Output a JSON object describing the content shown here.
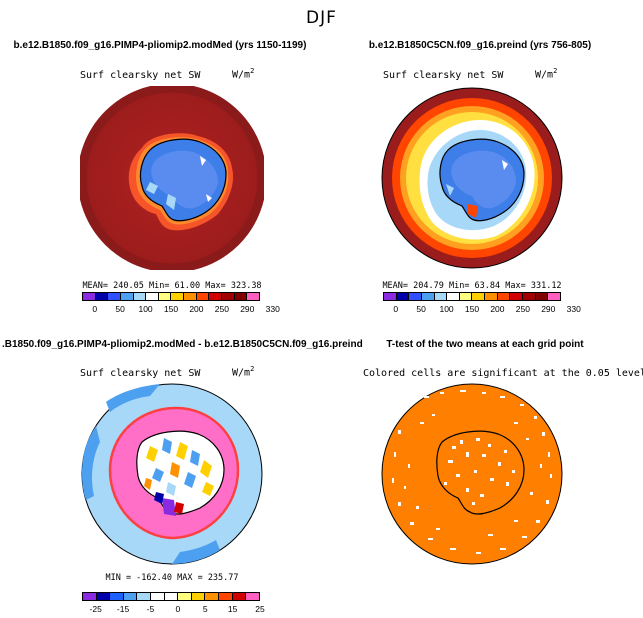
{
  "title": "DJF",
  "panels": [
    {
      "id": "panel-1",
      "case_title": "b.e12.B1850.f09_g16.PIMP4-pliomip2.modMed (yrs 1150-1199)",
      "variable": "Surf clearsky net SW",
      "units_base": "W/m",
      "units_exp": "2",
      "stats": "MEAN= 240.05   Min=  61.00   Max= 323.38",
      "colorbar": {
        "colors": [
          "#8a2be2",
          "#0000aa",
          "#3050ff",
          "#4da0f0",
          "#a8d8f8",
          "#ffffff",
          "#ffff80",
          "#ffd000",
          "#ff9000",
          "#ff4500",
          "#d00000",
          "#a00000",
          "#800000",
          "#ff60c0"
        ],
        "ticks": [
          "0",
          "50",
          "100",
          "150",
          "200",
          "250",
          "290",
          "330"
        ]
      }
    },
    {
      "id": "panel-2",
      "case_title": "b.e12.B1850C5CN.f09_g16.preind (yrs 756-805)",
      "variable": "Surf clearsky net SW",
      "units_base": "W/m",
      "units_exp": "2",
      "stats": "MEAN= 204.79   Min=  63.84   Max= 331.12",
      "colorbar": {
        "colors": [
          "#8a2be2",
          "#0000aa",
          "#3050ff",
          "#4da0f0",
          "#a8d8f8",
          "#ffffff",
          "#ffff80",
          "#ffd000",
          "#ff9000",
          "#ff4500",
          "#d00000",
          "#a00000",
          "#800000",
          "#ff60c0"
        ],
        "ticks": [
          "0",
          "50",
          "100",
          "150",
          "200",
          "250",
          "290",
          "330"
        ]
      }
    },
    {
      "id": "panel-3",
      "case_title": ".B1850.f09_g16.PIMP4-pliomip2.modMed - b.e12.B1850C5CN.f09_g16.preind",
      "variable": "Surf clearsky net SW",
      "units_base": "W/m",
      "units_exp": "2",
      "stats": "MIN = -162.40  MAX = 235.77",
      "colorbar": {
        "colors": [
          "#8a2be2",
          "#0000aa",
          "#1e60ff",
          "#4da0f0",
          "#a8d8f8",
          "#ffffff",
          "#ffffff",
          "#ffff80",
          "#ffd000",
          "#ff9000",
          "#ff4500",
          "#d00000",
          "#ff60c0"
        ],
        "ticks": [
          "-25",
          "-15",
          "-5",
          "0",
          "5",
          "15",
          "25"
        ]
      }
    },
    {
      "id": "panel-4",
      "case_title": "T-test of the two means at each grid point",
      "variable": "Colored cells are significant at the 0.05 level"
    }
  ]
}
